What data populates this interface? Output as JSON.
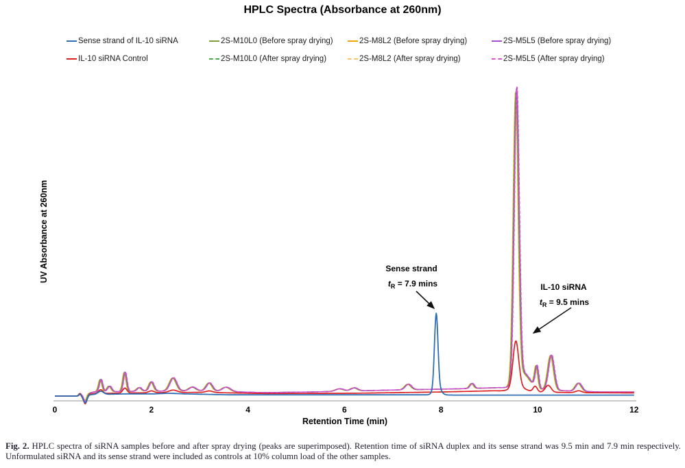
{
  "figure": {
    "caption_label": "Fig. 2.",
    "caption_text": " HPLC spectra of siRNA samples before and after spray drying (peaks are superimposed). Retention time of siRNA duplex and its sense strand was 9.5 min and 7.9 min respectively. Unformulated siRNA and its sense strand were included as controls at 10% column load of the other samples."
  },
  "chart_data": {
    "type": "line",
    "title": "HPLC Spectra (Absorbance at 260nm)",
    "xlabel": "Retention Time (min)",
    "ylabel": "UV Absorbance at 260nm",
    "xlim": [
      0,
      12
    ],
    "x_ticks": [
      0,
      2,
      4,
      6,
      8,
      10,
      12
    ],
    "ylim": [
      -0.05,
      1.05
    ],
    "grid": false,
    "legend_position": "top",
    "annotations": [
      {
        "title": "Sense strand",
        "t_sym": "t",
        "t_sub": "R",
        "value": " = 7.9 mins"
      },
      {
        "title": "IL-10 siRNA",
        "t_sym": "t",
        "t_sub": "R",
        "value": " = 9.5 mins"
      }
    ],
    "series": [
      {
        "key": "sense-strand",
        "name": "Sense strand of IL-10 siRNA",
        "color": "#2e6db4",
        "style": "solid",
        "profile": "sense",
        "dt": 0,
        "scale": 1,
        "width": 1.8,
        "peak_retention_min": 7.9
      },
      {
        "key": "m10l0-before",
        "name": "2S-M10L0 (Before spray drying)",
        "color": "#7f9c3a",
        "style": "solid",
        "profile": "formulation",
        "dt": -0.006,
        "scale": 0.995,
        "width": 1.5,
        "peak_retention_min": 9.5
      },
      {
        "key": "m8l2-before",
        "name": "2S-M8L2 (Before spray drying)",
        "color": "#f0a400",
        "style": "solid",
        "profile": "formulation",
        "dt": -0.016,
        "scale": 0.99,
        "width": 1.5,
        "peak_retention_min": 9.5
      },
      {
        "key": "m5l5-before",
        "name": "2S-M5L5 (Before spray drying)",
        "color": "#a44fd0",
        "style": "solid",
        "profile": "formulation",
        "dt": 0.008,
        "scale": 1.005,
        "width": 1.5,
        "peak_retention_min": 9.5
      },
      {
        "key": "il10-control",
        "name": "IL-10 siRNA Control",
        "color": "#de1f1f",
        "style": "solid",
        "profile": "control",
        "dt": 0,
        "scale": 1,
        "width": 1.7,
        "peak_retention_min": 9.5
      },
      {
        "key": "m10l0-after",
        "name": "2S-M10L0 (After spray drying)",
        "color": "#43a943",
        "style": "dashed",
        "profile": "formulation",
        "dt": 0,
        "scale": 1,
        "width": 1.5,
        "peak_retention_min": 9.5
      },
      {
        "key": "m8l2-after",
        "name": "2S-M8L2 (After spray drying)",
        "color": "#f6c167",
        "style": "dashed",
        "profile": "formulation",
        "dt": -0.01,
        "scale": 0.985,
        "width": 1.5,
        "peak_retention_min": 9.5
      },
      {
        "key": "m5l5-after",
        "name": "2S-M5L5 (After spray drying)",
        "color": "#e24fd0",
        "style": "dashed",
        "profile": "formulation",
        "dt": 0.014,
        "scale": 1.01,
        "width": 1.5,
        "peak_retention_min": 9.5
      }
    ],
    "draw_order": [
      2,
      6,
      1,
      5,
      3,
      7,
      4,
      0
    ],
    "profiles": {
      "sense": {
        "baseline": [
          [
            0,
            0
          ],
          [
            0.5,
            0
          ],
          [
            0.78,
            0.005
          ],
          [
            1.5,
            0.007
          ],
          [
            2.05,
            0.007
          ],
          [
            2.35,
            0.009
          ],
          [
            2.7,
            0.007
          ],
          [
            3.6,
            0.004
          ],
          [
            7.5,
            0.004
          ],
          [
            8.4,
            0.003
          ],
          [
            12,
            0.003
          ]
        ],
        "peaks": [
          [
            0.52,
            0.006,
            0.03
          ],
          [
            0.63,
            -0.024,
            0.05
          ],
          [
            0.95,
            0.01,
            0.08
          ],
          [
            7.9,
            0.235,
            0.05
          ],
          [
            7.92,
            0.028,
            0.1
          ]
        ]
      },
      "control": {
        "baseline": [
          [
            0,
            0
          ],
          [
            0.5,
            0
          ],
          [
            0.8,
            0.008
          ],
          [
            1.6,
            0.01
          ],
          [
            3,
            0.012
          ],
          [
            4.4,
            0.008
          ],
          [
            6.2,
            0.009
          ],
          [
            8,
            0.013
          ],
          [
            9.1,
            0.017
          ],
          [
            9.9,
            0.013
          ],
          [
            10.8,
            0.011
          ],
          [
            12,
            0.01
          ]
        ],
        "peaks": [
          [
            0.52,
            0.008,
            0.03
          ],
          [
            0.63,
            -0.028,
            0.05
          ],
          [
            0.95,
            0.012,
            0.06
          ],
          [
            1.45,
            0.016,
            0.06
          ],
          [
            2.0,
            0.006,
            0.08
          ],
          [
            2.45,
            0.008,
            0.12
          ],
          [
            3.2,
            0.005,
            0.1
          ],
          [
            9.55,
            0.148,
            0.083
          ],
          [
            9.6,
            0.015,
            0.2
          ],
          [
            9.95,
            0.018,
            0.06
          ],
          [
            10.22,
            0.022,
            0.085
          ],
          [
            10.85,
            0.006,
            0.09
          ]
        ]
      },
      "formulation": {
        "baseline": [
          [
            0,
            0
          ],
          [
            0.5,
            0
          ],
          [
            0.8,
            0.013
          ],
          [
            1.6,
            0.015
          ],
          [
            3,
            0.017
          ],
          [
            4.3,
            0.011
          ],
          [
            5.3,
            0.013
          ],
          [
            6.9,
            0.019
          ],
          [
            8.3,
            0.023
          ],
          [
            9.2,
            0.027
          ],
          [
            10,
            0.021
          ],
          [
            10.7,
            0.016
          ],
          [
            11.3,
            0.013
          ],
          [
            12,
            0.013
          ]
        ],
        "peaks": [
          [
            0.52,
            0.007,
            0.03
          ],
          [
            0.63,
            -0.024,
            0.05
          ],
          [
            0.95,
            0.04,
            0.05
          ],
          [
            1.13,
            0.018,
            0.06
          ],
          [
            1.45,
            0.062,
            0.05
          ],
          [
            1.75,
            0.012,
            0.07
          ],
          [
            2.0,
            0.03,
            0.07
          ],
          [
            2.45,
            0.042,
            0.1
          ],
          [
            2.85,
            0.012,
            0.1
          ],
          [
            3.2,
            0.026,
            0.09
          ],
          [
            3.55,
            0.014,
            0.12
          ],
          [
            5.9,
            0.008,
            0.12
          ],
          [
            6.2,
            0.01,
            0.1
          ],
          [
            7.32,
            0.018,
            0.09
          ],
          [
            8.64,
            0.016,
            0.06
          ],
          [
            9.56,
            0.93,
            0.072
          ],
          [
            9.7,
            0.05,
            0.2
          ],
          [
            9.98,
            0.07,
            0.05
          ],
          [
            10.28,
            0.112,
            0.085
          ],
          [
            10.85,
            0.026,
            0.09
          ]
        ]
      }
    }
  }
}
